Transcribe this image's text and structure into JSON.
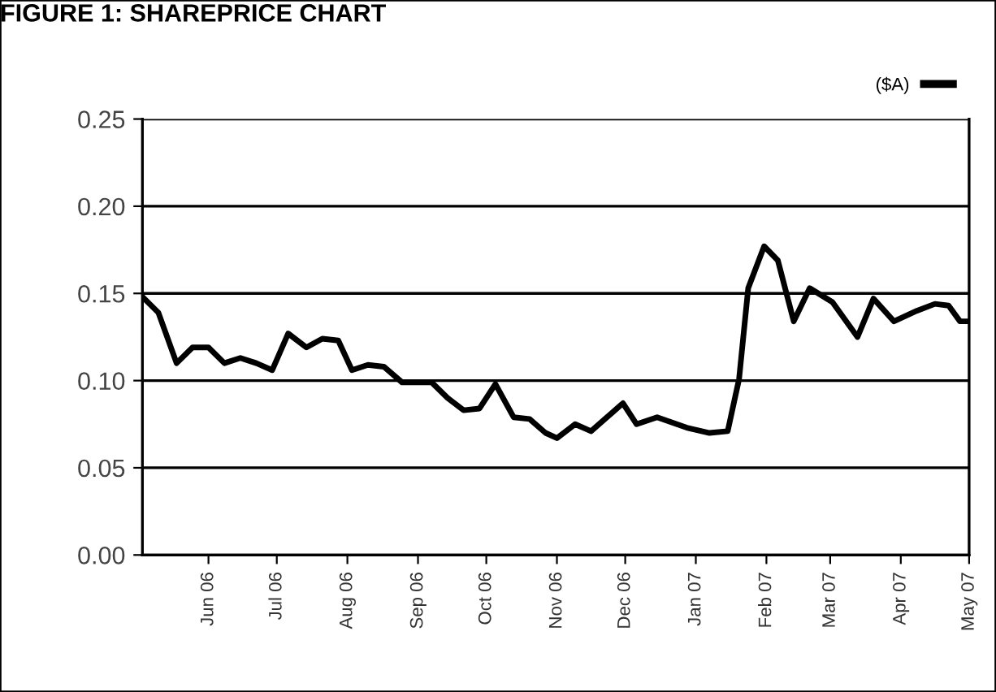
{
  "chart_data": {
    "type": "line",
    "title": "FIGURE 1: SHAREPRICE CHART",
    "x": [
      "2006-05-03",
      "2006-05-10",
      "2006-05-18",
      "2006-05-25",
      "2006-06-01",
      "2006-06-08",
      "2006-06-15",
      "2006-06-22",
      "2006-06-29",
      "2006-07-06",
      "2006-07-14",
      "2006-07-21",
      "2006-07-28",
      "2006-08-03",
      "2006-08-10",
      "2006-08-17",
      "2006-08-25",
      "2006-09-07",
      "2006-09-14",
      "2006-09-21",
      "2006-09-28",
      "2006-10-05",
      "2006-10-13",
      "2006-10-20",
      "2006-10-27",
      "2006-11-01",
      "2006-11-09",
      "2006-11-16",
      "2006-11-23",
      "2006-11-30",
      "2006-12-06",
      "2006-12-15",
      "2006-12-28",
      "2007-01-07",
      "2007-01-15",
      "2007-01-20",
      "2007-01-24",
      "2007-01-31",
      "2007-02-06",
      "2007-02-13",
      "2007-02-20",
      "2007-03-02",
      "2007-03-13",
      "2007-03-20",
      "2007-03-29",
      "2007-04-08",
      "2007-04-16",
      "2007-04-22",
      "2007-04-27",
      "2007-04-30"
    ],
    "series": [
      {
        "name": "($A)",
        "color": "#000000",
        "values": [
          0.148,
          0.139,
          0.11,
          0.119,
          0.119,
          0.11,
          0.113,
          0.11,
          0.106,
          0.127,
          0.119,
          0.124,
          0.123,
          0.106,
          0.109,
          0.108,
          0.099,
          0.099,
          0.09,
          0.083,
          0.084,
          0.098,
          0.079,
          0.078,
          0.07,
          0.067,
          0.075,
          0.071,
          0.079,
          0.087,
          0.075,
          0.079,
          0.073,
          0.07,
          0.071,
          0.101,
          0.153,
          0.177,
          0.169,
          0.134,
          0.153,
          0.145,
          0.125,
          0.147,
          0.134,
          0.14,
          0.144,
          0.143,
          0.134,
          0.134
        ]
      }
    ],
    "xlim": [
      "2006-05-03",
      "2007-05-01"
    ],
    "xticks": [
      {
        "value": "2006-06-01",
        "label": "Jun 06"
      },
      {
        "value": "2006-07-01",
        "label": "Jul 06"
      },
      {
        "value": "2006-08-01",
        "label": "Aug 06"
      },
      {
        "value": "2006-09-01",
        "label": "Sep 06"
      },
      {
        "value": "2006-10-01",
        "label": "Oct 06"
      },
      {
        "value": "2006-11-01",
        "label": "Nov 06"
      },
      {
        "value": "2006-12-01",
        "label": "Dec 06"
      },
      {
        "value": "2007-01-01",
        "label": "Jan 07"
      },
      {
        "value": "2007-02-01",
        "label": "Feb 07"
      },
      {
        "value": "2007-03-01",
        "label": "Mar 07"
      },
      {
        "value": "2007-04-01",
        "label": "Apr 07"
      },
      {
        "value": "2007-05-01",
        "label": "May 07"
      }
    ],
    "ylim": [
      0,
      0.25
    ],
    "yticks": [
      {
        "value": 0,
        "label": "0.00"
      },
      {
        "value": 0.05,
        "label": "0.05"
      },
      {
        "value": 0.1,
        "label": "0.10"
      },
      {
        "value": 0.15,
        "label": "0.15"
      },
      {
        "value": 0.2,
        "label": "0.20"
      },
      {
        "value": 0.25,
        "label": "0.25"
      }
    ],
    "grid": "y",
    "legend": "top right",
    "marker": "none",
    "line_style": "solid"
  }
}
